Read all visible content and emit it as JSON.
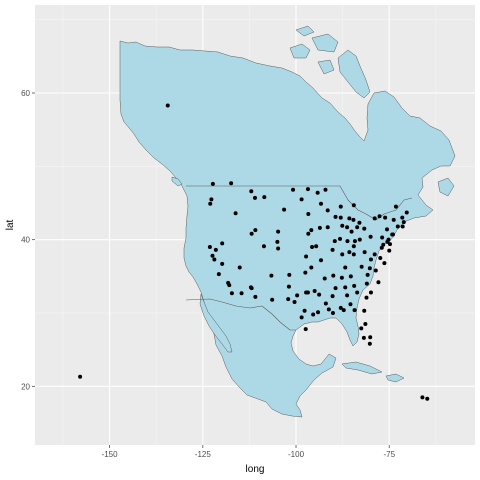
{
  "colors": {
    "panel": "#ebebeb",
    "grid_major": "#ffffff",
    "grid_minor": "#f5f5f5",
    "land": "#add8e6",
    "border": "#5a5a5a",
    "point": "#000000",
    "tick": "#4d4d4d"
  },
  "chart_data": {
    "type": "scatter",
    "xlabel": "long",
    "ylabel": "lat",
    "xlim": [
      -170,
      -52
    ],
    "ylim": [
      12,
      72
    ],
    "x_ticks": [
      -150,
      -125,
      -100,
      -75
    ],
    "x_tick_labels": [
      "-150",
      "-125",
      "-100",
      "-75"
    ],
    "y_ticks": [
      20,
      40,
      60
    ],
    "y_tick_labels": [
      "20",
      "40",
      "60"
    ],
    "grid": true,
    "basemap": "North America outline filled light blue with the United States border drawn",
    "points": [
      [
        -157.9,
        21.3
      ],
      [
        -134.4,
        58.3
      ],
      [
        -66.1,
        18.5
      ],
      [
        -64.8,
        18.3
      ],
      [
        -122.3,
        47.6
      ],
      [
        -122.7,
        45.5
      ],
      [
        -123.0,
        44.9
      ],
      [
        -117.4,
        47.7
      ],
      [
        -116.2,
        43.6
      ],
      [
        -112.0,
        46.6
      ],
      [
        -108.5,
        45.8
      ],
      [
        -111.0,
        45.7
      ],
      [
        -119.8,
        39.5
      ],
      [
        -115.1,
        36.2
      ],
      [
        -122.4,
        37.8
      ],
      [
        -121.9,
        37.3
      ],
      [
        -121.5,
        38.6
      ],
      [
        -118.2,
        34.1
      ],
      [
        -117.9,
        33.8
      ],
      [
        -117.2,
        32.7
      ],
      [
        -119.8,
        36.7
      ],
      [
        -123.1,
        39.0
      ],
      [
        -111.9,
        40.8
      ],
      [
        -111.9,
        33.4
      ],
      [
        -110.9,
        32.2
      ],
      [
        -106.6,
        35.1
      ],
      [
        -105.0,
        39.7
      ],
      [
        -104.8,
        38.8
      ],
      [
        -106.4,
        31.8
      ],
      [
        -104.8,
        41.1
      ],
      [
        -103.2,
        44.1
      ],
      [
        -100.8,
        46.8
      ],
      [
        -96.8,
        46.9
      ],
      [
        -96.7,
        40.8
      ],
      [
        -95.9,
        41.3
      ],
      [
        -97.3,
        37.7
      ],
      [
        -95.7,
        39.0
      ],
      [
        -97.5,
        35.5
      ],
      [
        -95.9,
        36.2
      ],
      [
        -101.8,
        35.2
      ],
      [
        -101.9,
        33.6
      ],
      [
        -97.3,
        32.8
      ],
      [
        -96.8,
        32.8
      ],
      [
        -97.7,
        30.3
      ],
      [
        -98.5,
        29.4
      ],
      [
        -95.4,
        29.8
      ],
      [
        -94.1,
        30.1
      ],
      [
        -97.4,
        27.8
      ],
      [
        -93.3,
        44.9
      ],
      [
        -92.1,
        46.8
      ],
      [
        -93.6,
        41.6
      ],
      [
        -91.5,
        41.7
      ],
      [
        -90.2,
        38.6
      ],
      [
        -94.6,
        39.1
      ],
      [
        -93.3,
        37.2
      ],
      [
        -92.3,
        34.7
      ],
      [
        -90.2,
        32.3
      ],
      [
        -90.1,
        30.0
      ],
      [
        -91.2,
        30.5
      ],
      [
        -93.8,
        32.5
      ],
      [
        -88.0,
        43.0
      ],
      [
        -89.4,
        43.1
      ],
      [
        -87.6,
        41.9
      ],
      [
        -89.6,
        39.8
      ],
      [
        -88.2,
        40.1
      ],
      [
        -86.2,
        39.8
      ],
      [
        -87.6,
        38.0
      ],
      [
        -85.7,
        38.3
      ],
      [
        -84.5,
        38.0
      ],
      [
        -86.8,
        36.2
      ],
      [
        -90.0,
        35.1
      ],
      [
        -85.3,
        35.0
      ],
      [
        -86.8,
        33.5
      ],
      [
        -88.0,
        30.7
      ],
      [
        -86.3,
        32.4
      ],
      [
        -84.4,
        33.7
      ],
      [
        -81.1,
        32.1
      ],
      [
        -81.7,
        30.3
      ],
      [
        -82.5,
        27.9
      ],
      [
        -81.4,
        28.5
      ],
      [
        -80.2,
        25.8
      ],
      [
        -80.1,
        26.7
      ],
      [
        -81.8,
        26.6
      ],
      [
        -84.3,
        30.4
      ],
      [
        -87.2,
        30.4
      ],
      [
        -81.0,
        34.0
      ],
      [
        -80.8,
        35.2
      ],
      [
        -79.9,
        32.8
      ],
      [
        -78.6,
        35.8
      ],
      [
        -77.9,
        34.2
      ],
      [
        -76.3,
        36.8
      ],
      [
        -77.4,
        37.5
      ],
      [
        -79.9,
        37.3
      ],
      [
        -81.6,
        38.3
      ],
      [
        -77.0,
        38.9
      ],
      [
        -76.6,
        39.3
      ],
      [
        -75.5,
        39.7
      ],
      [
        -75.2,
        40.0
      ],
      [
        -80.0,
        40.4
      ],
      [
        -76.9,
        40.3
      ],
      [
        -74.2,
        40.7
      ],
      [
        -74.0,
        40.7
      ],
      [
        -73.8,
        42.7
      ],
      [
        -78.9,
        42.9
      ],
      [
        -77.6,
        43.2
      ],
      [
        -76.1,
        43.0
      ],
      [
        -72.7,
        41.8
      ],
      [
        -71.4,
        41.8
      ],
      [
        -71.1,
        42.4
      ],
      [
        -70.3,
        43.7
      ],
      [
        -71.5,
        43.0
      ],
      [
        -73.2,
        44.5
      ],
      [
        -83.0,
        42.3
      ],
      [
        -85.7,
        42.9
      ],
      [
        -84.6,
        42.7
      ],
      [
        -83.6,
        41.7
      ],
      [
        -81.7,
        41.5
      ],
      [
        -82.9,
        40.0
      ],
      [
        -84.5,
        39.1
      ],
      [
        -84.2,
        39.8
      ],
      [
        -86.3,
        41.7
      ],
      [
        -85.1,
        41.1
      ],
      [
        -88.0,
        44.5
      ],
      [
        -84.5,
        44.7
      ],
      [
        -91.5,
        44.0
      ],
      [
        -96.7,
        43.5
      ],
      [
        -98.5,
        45.5
      ],
      [
        -94.2,
        46.4
      ],
      [
        -110.9,
        41.3
      ],
      [
        -108.6,
        39.1
      ],
      [
        -112.1,
        33.5
      ],
      [
        -114.6,
        32.7
      ],
      [
        -120.7,
        35.3
      ],
      [
        -99.7,
        32.4
      ],
      [
        -102.1,
        31.9
      ],
      [
        -100.4,
        31.5
      ],
      [
        -95.0,
        33.0
      ],
      [
        -92.0,
        31.3
      ],
      [
        -89.4,
        33.4
      ],
      [
        -87.7,
        34.8
      ],
      [
        -85.4,
        31.2
      ],
      [
        -83.6,
        32.8
      ],
      [
        -82.4,
        36.3
      ],
      [
        -80.2,
        36.1
      ],
      [
        -78.9,
        38.0
      ],
      [
        -75.0,
        38.5
      ],
      [
        -75.6,
        41.4
      ],
      [
        -74.8,
        39.4
      ]
    ]
  }
}
